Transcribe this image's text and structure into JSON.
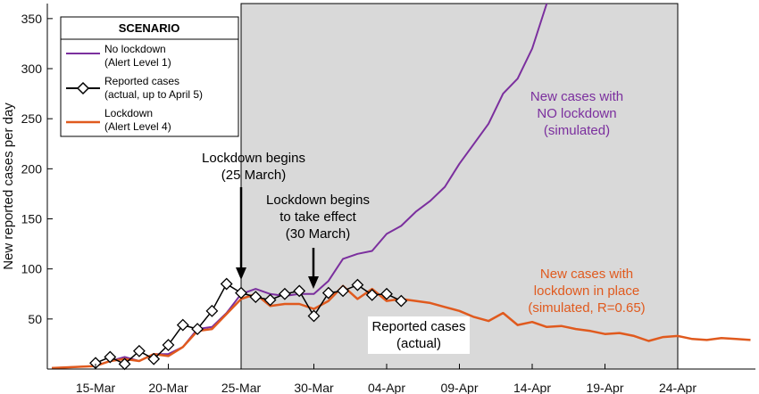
{
  "chart_data": {
    "type": "line",
    "ylabel": "New reported cases per day",
    "xlabel": "",
    "ylim": [
      0,
      365
    ],
    "yticks": [
      50,
      100,
      150,
      200,
      250,
      300,
      350
    ],
    "xtick_labels": [
      "15-Mar",
      "20-Mar",
      "25-Mar",
      "30-Mar",
      "04-Apr",
      "09-Apr",
      "14-Apr",
      "19-Apr",
      "24-Apr"
    ],
    "x_start_date": "2020-03-15",
    "shaded_region": {
      "from": "2020-03-25",
      "to": "2020-04-24",
      "color": "#d9d9d9"
    },
    "legend": {
      "title": "SCENARIO",
      "entries": [
        {
          "series": "no_lockdown",
          "line1": "No lockdown",
          "line2": "(Alert Level 1)"
        },
        {
          "series": "reported",
          "line1": "Reported cases",
          "line2": "(actual, up to April 5)"
        },
        {
          "series": "lockdown",
          "line1": "Lockdown",
          "line2": "(Alert Level 4)"
        }
      ]
    },
    "annotations": [
      {
        "name": "lockdown-begins",
        "lines": [
          "Lockdown begins",
          "(25 March)"
        ]
      },
      {
        "name": "lockdown-takes-effect",
        "lines": [
          "Lockdown begins",
          "to take effect",
          "(30 March)"
        ]
      },
      {
        "name": "no-lockdown-label",
        "lines": [
          "New cases with",
          "NO lockdown",
          "(simulated)"
        ]
      },
      {
        "name": "lockdown-label",
        "lines": [
          "New cases with",
          "lockdown in place",
          "(simulated, R=0.65)"
        ]
      },
      {
        "name": "reported-label",
        "lines": [
          "Reported cases",
          "(actual)"
        ]
      }
    ],
    "series": [
      {
        "key": "no_lockdown",
        "color": "#7b2f9e",
        "x": [
          "2020-03-12",
          "2020-03-15",
          "2020-03-16",
          "2020-03-17",
          "2020-03-18",
          "2020-03-19",
          "2020-03-20",
          "2020-03-21",
          "2020-03-22",
          "2020-03-23",
          "2020-03-24",
          "2020-03-25",
          "2020-03-26",
          "2020-03-27",
          "2020-03-28",
          "2020-03-29",
          "2020-03-30",
          "2020-03-31",
          "2020-04-01",
          "2020-04-02",
          "2020-04-03",
          "2020-04-04",
          "2020-04-05",
          "2020-04-06",
          "2020-04-07",
          "2020-04-08",
          "2020-04-09",
          "2020-04-10",
          "2020-04-11",
          "2020-04-12",
          "2020-04-13",
          "2020-04-14",
          "2020-04-15"
        ],
        "y": [
          1,
          3,
          8,
          12,
          8,
          15,
          15,
          22,
          40,
          42,
          56,
          75,
          80,
          75,
          73,
          75,
          75,
          88,
          110,
          115,
          118,
          135,
          143,
          157,
          168,
          182,
          205,
          225,
          245,
          275,
          290,
          320,
          365
        ]
      },
      {
        "key": "lockdown",
        "color": "#e05a1e",
        "x": [
          "2020-03-12",
          "2020-03-15",
          "2020-03-16",
          "2020-03-17",
          "2020-03-18",
          "2020-03-19",
          "2020-03-20",
          "2020-03-21",
          "2020-03-22",
          "2020-03-23",
          "2020-03-24",
          "2020-03-25",
          "2020-03-26",
          "2020-03-27",
          "2020-03-28",
          "2020-03-29",
          "2020-03-30",
          "2020-03-31",
          "2020-04-01",
          "2020-04-02",
          "2020-04-03",
          "2020-04-04",
          "2020-04-05",
          "2020-04-06",
          "2020-04-07",
          "2020-04-08",
          "2020-04-09",
          "2020-04-10",
          "2020-04-11",
          "2020-04-12",
          "2020-04-13",
          "2020-04-14",
          "2020-04-15",
          "2020-04-16",
          "2020-04-17",
          "2020-04-18",
          "2020-04-19",
          "2020-04-20",
          "2020-04-21",
          "2020-04-22",
          "2020-04-23",
          "2020-04-24",
          "2020-04-25",
          "2020-04-26",
          "2020-04-27",
          "2020-04-28",
          "2020-04-29",
          "2020-04-30"
        ],
        "y": [
          1,
          3,
          8,
          10,
          8,
          15,
          13,
          22,
          38,
          40,
          55,
          70,
          75,
          63,
          65,
          65,
          60,
          68,
          83,
          70,
          80,
          68,
          70,
          68,
          66,
          62,
          58,
          52,
          48,
          56,
          44,
          47,
          42,
          43,
          40,
          38,
          35,
          36,
          33,
          28,
          32,
          33,
          30,
          29,
          31,
          30,
          29,
          27
        ]
      },
      {
        "key": "reported",
        "color": "#000000",
        "x": [
          "2020-03-15",
          "2020-03-16",
          "2020-03-17",
          "2020-03-18",
          "2020-03-19",
          "2020-03-20",
          "2020-03-21",
          "2020-03-22",
          "2020-03-23",
          "2020-03-24",
          "2020-03-25",
          "2020-03-26",
          "2020-03-27",
          "2020-03-28",
          "2020-03-29",
          "2020-03-30",
          "2020-03-31",
          "2020-04-01",
          "2020-04-02",
          "2020-04-03",
          "2020-04-04",
          "2020-04-05"
        ],
        "y": [
          6,
          12,
          5,
          18,
          10,
          24,
          44,
          40,
          58,
          85,
          76,
          72,
          69,
          75,
          78,
          53,
          76,
          78,
          84,
          74,
          75,
          68
        ]
      }
    ]
  }
}
